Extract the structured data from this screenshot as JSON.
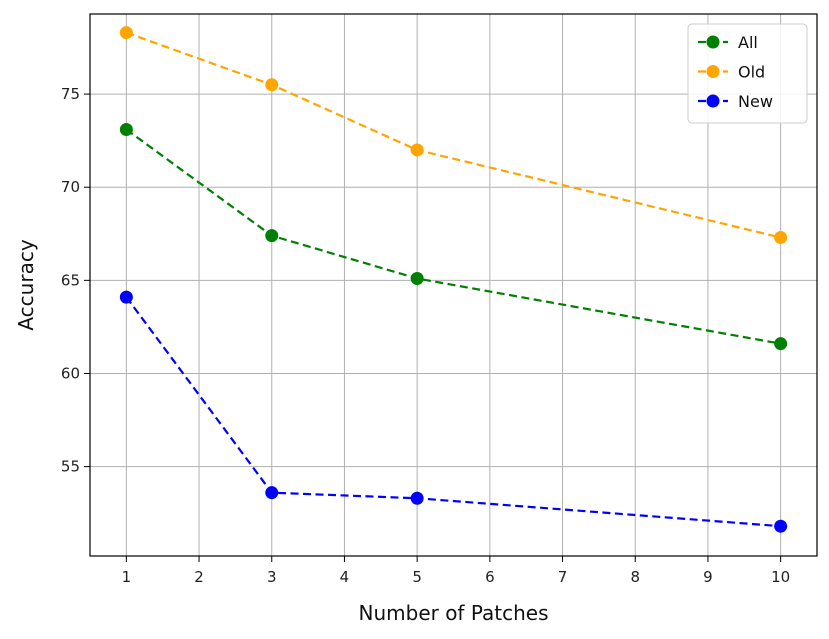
{
  "chart_data": {
    "type": "line",
    "xlabel": "Number of Patches",
    "ylabel": "Accuracy",
    "xlim": [
      0.5,
      10.5
    ],
    "ylim": [
      50.2,
      79.3
    ],
    "xticks": [
      1,
      2,
      3,
      4,
      5,
      6,
      7,
      8,
      9,
      10
    ],
    "yticks": [
      55,
      60,
      65,
      70,
      75
    ],
    "grid": true,
    "legend_position": "top-right",
    "x": [
      1,
      3,
      5,
      10
    ],
    "series": [
      {
        "name": "All",
        "color": "#008000",
        "values": [
          73.1,
          67.4,
          65.1,
          61.6
        ]
      },
      {
        "name": "Old",
        "color": "#ffa500",
        "values": [
          78.3,
          75.5,
          72.0,
          67.3
        ]
      },
      {
        "name": "New",
        "color": "#0000ff",
        "values": [
          64.1,
          53.6,
          53.3,
          51.8
        ]
      }
    ]
  }
}
